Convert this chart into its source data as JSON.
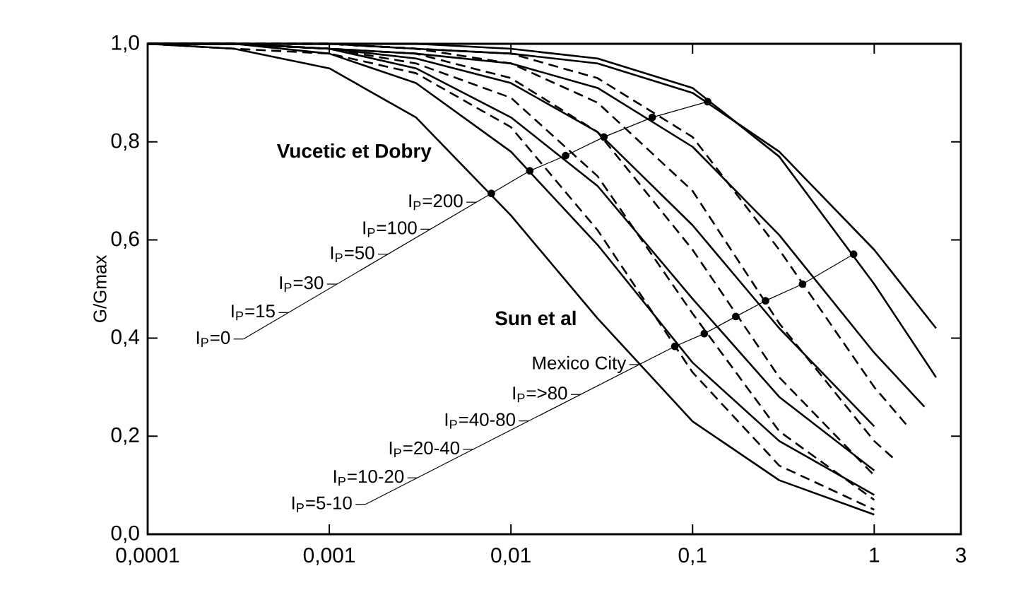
{
  "chart_data": {
    "type": "line",
    "ylabel": "G/Gmax",
    "log": "x",
    "xlim": [
      0.0001,
      3
    ],
    "ylim": [
      0,
      1
    ],
    "xticks": [
      {
        "value": 0.0001,
        "label": "0,0001"
      },
      {
        "value": 0.001,
        "label": "0,001"
      },
      {
        "value": 0.01,
        "label": "0,01"
      },
      {
        "value": 0.1,
        "label": "0,1"
      },
      1,
      3
    ],
    "yticks": [
      {
        "value": 0,
        "label": "0,0"
      },
      {
        "value": 0.2,
        "label": "0,2"
      },
      {
        "value": 0.4,
        "label": "0,4"
      },
      {
        "value": 0.6,
        "label": "0,6"
      },
      {
        "value": 0.8,
        "label": "0,8"
      },
      {
        "value": 1,
        "label": "1,0"
      }
    ],
    "series": [
      {
        "color": "#000000",
        "line_style": "solid",
        "x": [
          0.0001,
          0.0003,
          0.001,
          0.003,
          0.01,
          0.03,
          0.1,
          0.3,
          1
        ],
        "values": [
          1.0,
          0.99,
          0.95,
          0.85,
          0.65,
          0.44,
          0.23,
          0.11,
          0.04
        ]
      },
      {
        "color": "#000000",
        "line_style": "solid",
        "x": [
          0.0001,
          0.0003,
          0.001,
          0.003,
          0.01,
          0.03,
          0.1,
          0.3,
          1
        ],
        "values": [
          1.0,
          1.0,
          0.98,
          0.92,
          0.78,
          0.59,
          0.35,
          0.19,
          0.08
        ]
      },
      {
        "color": "#000000",
        "line_style": "solid",
        "x": [
          0.0001,
          0.0003,
          0.001,
          0.003,
          0.01,
          0.03,
          0.1,
          0.3,
          1
        ],
        "values": [
          1.0,
          1.0,
          0.99,
          0.95,
          0.85,
          0.71,
          0.48,
          0.28,
          0.13
        ]
      },
      {
        "color": "#000000",
        "line_style": "solid",
        "x": [
          0.0001,
          0.0003,
          0.001,
          0.003,
          0.01,
          0.03,
          0.1,
          0.3,
          1
        ],
        "values": [
          1.0,
          1.0,
          0.99,
          0.97,
          0.92,
          0.82,
          0.63,
          0.42,
          0.22
        ]
      },
      {
        "color": "#000000",
        "line_style": "solid",
        "x": [
          0.0001,
          0.0003,
          0.001,
          0.003,
          0.01,
          0.03,
          0.1,
          0.3,
          1,
          1.89
        ],
        "values": [
          1.0,
          1.0,
          0.99,
          0.98,
          0.96,
          0.91,
          0.79,
          0.61,
          0.37,
          0.26
        ]
      },
      {
        "color": "#000000",
        "line_style": "solid",
        "x": [
          0.0001,
          0.0003,
          0.001,
          0.003,
          0.01,
          0.03,
          0.1,
          0.3,
          1,
          2.19
        ],
        "values": [
          1.0,
          1.0,
          1.0,
          0.99,
          0.98,
          0.96,
          0.9,
          0.78,
          0.58,
          0.42
        ]
      },
      {
        "color": "#000000",
        "line_style": "dashed",
        "x": [
          0.0001,
          0.0003,
          0.001,
          0.003,
          0.01,
          0.03,
          0.1,
          0.3,
          1
        ],
        "values": [
          1.0,
          0.99,
          0.98,
          0.94,
          0.83,
          0.62,
          0.33,
          0.14,
          0.05
        ]
      },
      {
        "color": "#000000",
        "line_style": "dashed",
        "x": [
          0.0001,
          0.0003,
          0.001,
          0.003,
          0.01,
          0.03,
          0.1,
          0.3,
          1
        ],
        "values": [
          1.0,
          1.0,
          0.99,
          0.96,
          0.89,
          0.73,
          0.45,
          0.21,
          0.07
        ]
      },
      {
        "color": "#000000",
        "line_style": "dashed",
        "x": [
          0.0001,
          0.0003,
          0.001,
          0.003,
          0.01,
          0.03,
          0.1,
          0.3,
          1
        ],
        "values": [
          1.0,
          1.0,
          0.99,
          0.98,
          0.93,
          0.82,
          0.58,
          0.32,
          0.12
        ]
      },
      {
        "color": "#000000",
        "line_style": "dashed",
        "x": [
          0.0001,
          0.0003,
          0.001,
          0.003,
          0.01,
          0.03,
          0.1,
          0.3,
          1,
          1.32
        ],
        "values": [
          1.0,
          1.0,
          1.0,
          0.99,
          0.96,
          0.88,
          0.7,
          0.43,
          0.19,
          0.15
        ]
      },
      {
        "color": "#000000",
        "line_style": "dashed",
        "x": [
          0.0001,
          0.0003,
          0.001,
          0.003,
          0.01,
          0.03,
          0.1,
          0.3,
          1,
          1.53
        ],
        "values": [
          1.0,
          1.0,
          1.0,
          0.99,
          0.98,
          0.93,
          0.81,
          0.58,
          0.3,
          0.22
        ]
      },
      {
        "color": "#000000",
        "line_style": "solid",
        "x": [
          0.0001,
          0.0003,
          0.001,
          0.003,
          0.01,
          0.03,
          0.1,
          0.3,
          1,
          2.19
        ],
        "values": [
          1.0,
          1.0,
          1.0,
          1.0,
          0.99,
          0.97,
          0.91,
          0.77,
          0.51,
          0.32
        ]
      },
      {
        "color": "#000000",
        "line_style": "solid",
        "marker": "circle",
        "x": [
          0.0078,
          0.0127,
          0.02,
          0.0325,
          0.06,
          0.121
        ],
        "values": [
          0.695,
          0.741,
          0.772,
          0.81,
          0.85,
          0.882
        ]
      },
      {
        "color": "#000000",
        "line_style": "solid",
        "marker": "circle",
        "x": [
          0.0798,
          0.116,
          0.173,
          0.252,
          0.403,
          0.77
        ],
        "values": [
          0.383,
          0.409,
          0.444,
          0.476,
          0.51,
          0.571
        ]
      },
      {
        "color": "#000000",
        "line_style": "solid",
        "marker": "none",
        "x": [
          0.000337,
          0.0078
        ],
        "values": [
          0.398,
          0.695
        ]
      },
      {
        "color": "#000000",
        "line_style": "solid",
        "marker": "none",
        "x": [
          0.00158,
          0.0798
        ],
        "values": [
          0.061,
          0.383
        ]
      }
    ],
    "annotations": [
      "Vucetic et Dobry",
      "Sun et al",
      {
        "text": "I$_{P}$=200",
        "x": 0.00644,
        "y": 0.677
      },
      {
        "text": "I$_{P}$=100",
        "x": 0.0036,
        "y": 0.622
      },
      {
        "text": "I$_{P}$=50",
        "x": 0.0021,
        "y": 0.571
      },
      {
        "text": "I$_{P}$=30",
        "x": 0.0011,
        "y": 0.51
      },
      {
        "text": "I$_{P}$=15",
        "x": 0.000596,
        "y": 0.452
      },
      {
        "text": "I$_{P}$=0",
        "x": 0.000337,
        "y": 0.398
      },
      {
        "text": "Mexico City",
        "x": 0.0508,
        "y": 0.346
      },
      {
        "text": "I$_{P}$=>80",
        "x": 0.0242,
        "y": 0.285
      },
      {
        "text": "I$_{P}$=40-80",
        "x": 0.01253,
        "y": 0.231
      },
      {
        "text": "I$_{P}$=20-40",
        "x": 0.00618,
        "y": 0.173
      },
      {
        "text": "I$_{P}$=10-20",
        "x": 0.00305,
        "y": 0.115
      },
      {
        "text": "I$_{P}$=5-10",
        "x": 0.00158,
        "y": 0.061
      }
    ]
  }
}
